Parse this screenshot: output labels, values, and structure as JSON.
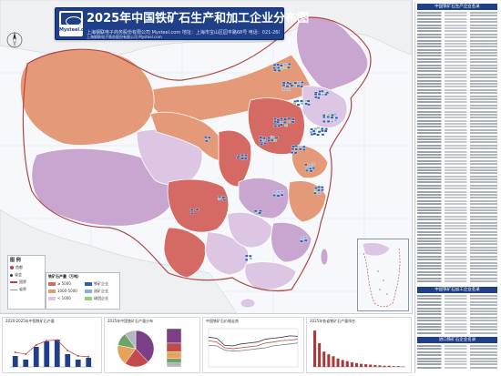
{
  "header": {
    "title": "2025年中国铁矿石生产和加工企业分布图",
    "logo_text": "Mysteel.com",
    "info_line_1": "上海钢联电子商务股份有限公司 Mysteel.com    地址：上海市宝山区园丰路68号    电话：021-26093000    网址：www.mysteel.com",
    "info_line_2": "上海钢联电子商务股份有限公司 Mysteel.com"
  },
  "colors": {
    "province_dark": "#d46a63",
    "province_orange": "#e49a78",
    "province_light": "#f3c6b0",
    "province_purple": "#c9a6cf",
    "province_lilac": "#ddc6e3",
    "ocean": "#f6f8fb",
    "marker": "#2e5fa8",
    "marker_alt": "#7fb2dc",
    "marker_green": "#8fcf7f",
    "brand": "#1f3f88"
  },
  "legend": {
    "title": "图 例",
    "items": [
      "首都",
      "省会",
      "国界",
      "省界"
    ]
  },
  "legend_secondary": {
    "title": "铁矿石产量（万吨）",
    "items": [
      "≥ 5000",
      "1000-5000",
      "< 1000"
    ],
    "marker_items": [
      "铁矿企业",
      "选矿企业",
      "球团企业"
    ]
  },
  "sidebar": {
    "section_1": "中国铁矿石生产企业名录",
    "section_2": "中国铁矿石加工企业名录",
    "section_3": "进口铁矿石企业名录"
  },
  "charts": {
    "titles": [
      "2020-2025年中国铁矿石产量",
      "2025年中国铁矿石产量分布",
      "中国铁矿石价格走势",
      "2025年各省铁矿石产量排名"
    ]
  },
  "chart_data": [
    {
      "type": "bar",
      "categories": [
        "1",
        "2",
        "3",
        "4",
        "5",
        "6",
        "7",
        "8"
      ],
      "values": [
        30,
        20,
        55,
        70,
        75,
        35,
        20,
        25
      ],
      "overlay_line": [
        40,
        35,
        60,
        72,
        74,
        45,
        30,
        28
      ],
      "ylim": [
        0,
        100
      ]
    },
    {
      "type": "pie",
      "values": [
        38,
        22,
        18,
        12,
        10
      ],
      "colors": [
        "#7b3f86",
        "#c24a4a",
        "#e6a35a",
        "#6fa36a",
        "#b0b7c2"
      ]
    },
    {
      "type": "line",
      "series": [
        {
          "values": [
            62,
            60,
            45,
            44,
            48,
            50,
            52,
            58,
            60,
            62,
            65,
            64
          ]
        },
        {
          "values": [
            55,
            52,
            40,
            38,
            40,
            42,
            44,
            50,
            52,
            55,
            56,
            58
          ]
        },
        {
          "values": [
            45,
            44,
            35,
            33,
            34,
            36,
            38,
            40,
            44,
            46,
            48,
            50
          ]
        }
      ],
      "ylim": [
        0,
        80
      ]
    },
    {
      "type": "bar",
      "values": [
        95,
        62,
        40,
        33,
        28,
        22,
        18,
        15,
        12,
        10,
        8,
        7,
        6,
        5,
        4,
        3,
        3,
        2,
        2,
        1
      ],
      "ylim": [
        0,
        100
      ]
    }
  ]
}
